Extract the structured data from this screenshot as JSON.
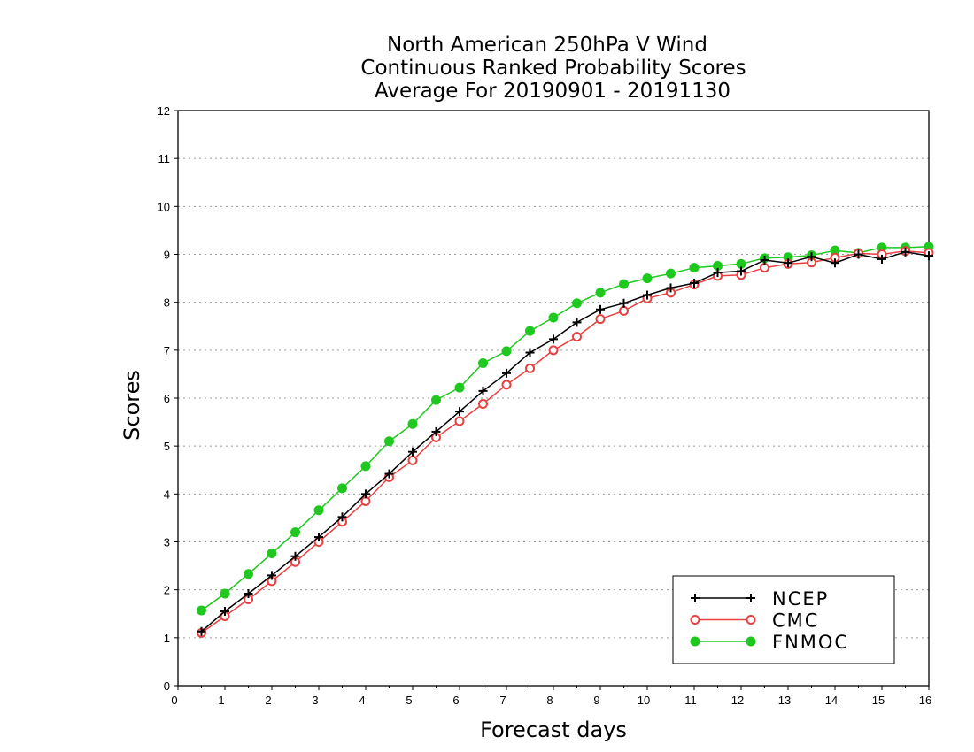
{
  "chart_data": {
    "type": "line",
    "title_lines": [
      "North American 250hPa V Wind",
      "Continuous Ranked Probability Scores",
      "Average For 20190901 - 20191130"
    ],
    "xlabel": "Forecast days",
    "ylabel": "Scores",
    "xlim": [
      0,
      16
    ],
    "ylim": [
      0,
      12
    ],
    "x_ticks": [
      "0",
      "1",
      "2",
      "3",
      "4",
      "5",
      "6",
      "7",
      "8",
      "9",
      "10",
      "11",
      "12",
      "13",
      "14",
      "15",
      "16"
    ],
    "y_ticks": [
      "0",
      "1",
      "2",
      "3",
      "4",
      "5",
      "6",
      "7",
      "8",
      "9",
      "10",
      "11",
      "12"
    ],
    "grid": true,
    "legend_position": "bottom-right",
    "x": [
      0.5,
      1,
      1.5,
      2,
      2.5,
      3,
      3.5,
      4,
      4.5,
      5,
      5.5,
      6,
      6.5,
      7,
      7.5,
      8,
      8.5,
      9,
      9.5,
      10,
      10.5,
      11,
      11.5,
      12,
      12.5,
      13,
      13.5,
      14,
      14.5,
      15,
      15.5,
      16
    ],
    "series": [
      {
        "name": "NCEP",
        "color": "#000000",
        "marker": "plus",
        "values": [
          1.13,
          1.55,
          1.92,
          2.3,
          2.7,
          3.1,
          3.52,
          4.0,
          4.42,
          4.88,
          5.3,
          5.72,
          6.15,
          6.52,
          6.95,
          7.23,
          7.58,
          7.85,
          7.98,
          8.15,
          8.3,
          8.4,
          8.62,
          8.65,
          8.88,
          8.82,
          8.95,
          8.82,
          9.0,
          8.9,
          9.05,
          8.97
        ]
      },
      {
        "name": "CMC",
        "color": "#e84040",
        "marker": "open-circle",
        "values": [
          1.1,
          1.45,
          1.8,
          2.18,
          2.58,
          3.0,
          3.42,
          3.85,
          4.35,
          4.7,
          5.18,
          5.52,
          5.88,
          6.28,
          6.62,
          7.0,
          7.28,
          7.65,
          7.82,
          8.08,
          8.2,
          8.37,
          8.55,
          8.57,
          8.72,
          8.8,
          8.83,
          8.93,
          9.02,
          9.0,
          9.07,
          9.03
        ]
      },
      {
        "name": "FNMOC",
        "color": "#1ec81e",
        "marker": "filled-circle",
        "values": [
          1.57,
          1.92,
          2.33,
          2.76,
          3.2,
          3.66,
          4.12,
          4.58,
          5.1,
          5.46,
          5.96,
          6.22,
          6.73,
          6.98,
          7.4,
          7.68,
          7.98,
          8.2,
          8.38,
          8.5,
          8.6,
          8.72,
          8.76,
          8.8,
          8.92,
          8.94,
          8.98,
          9.08,
          9.03,
          9.14,
          9.14,
          9.16
        ]
      }
    ]
  }
}
